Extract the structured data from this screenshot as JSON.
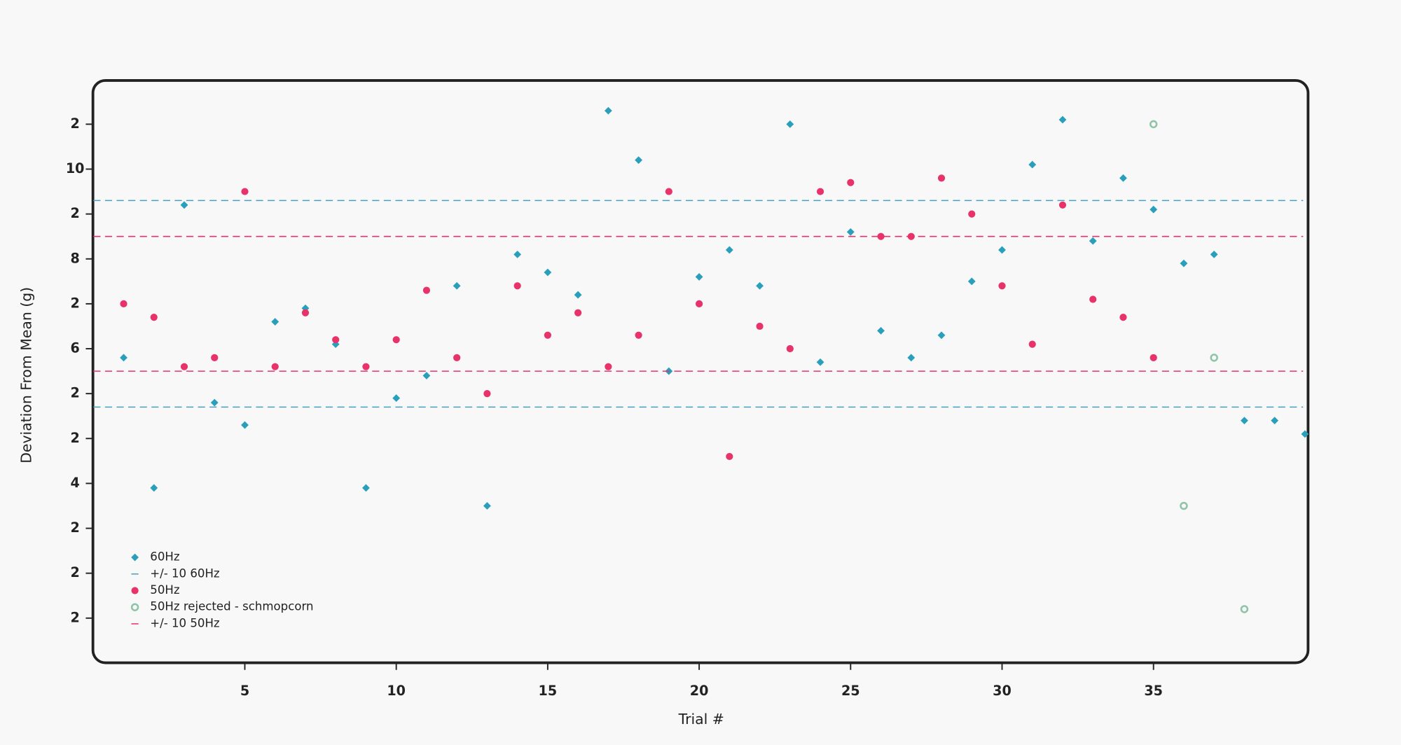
{
  "chart_data": {
    "type": "scatter",
    "xlabel": "Trial #",
    "ylabel": "Deviation From Mean (g)",
    "xlim": [
      0,
      40
    ],
    "ylim": [
      -1,
      12
    ],
    "xticks": [
      5,
      10,
      15,
      20,
      25,
      30,
      35
    ],
    "yticks": [
      {
        "value": 11,
        "label": "2"
      },
      {
        "value": 10,
        "label": "10"
      },
      {
        "value": 9,
        "label": "2"
      },
      {
        "value": 8,
        "label": "8"
      },
      {
        "value": 7,
        "label": "2"
      },
      {
        "value": 6,
        "label": "6"
      },
      {
        "value": 5,
        "label": "2"
      },
      {
        "value": 4,
        "label": "2"
      },
      {
        "value": 3,
        "label": "4"
      },
      {
        "value": 2,
        "label": "2"
      },
      {
        "value": 1,
        "label": "2"
      },
      {
        "value": 0,
        "label": "2"
      }
    ],
    "series": [
      {
        "name": "60Hz",
        "marker": "diamond",
        "color": "#2a9fbc",
        "x": [
          1,
          2,
          3,
          4,
          5,
          6,
          7,
          8,
          9,
          10,
          11,
          12,
          13,
          14,
          15,
          16,
          17,
          18,
          19,
          20,
          21,
          22,
          23,
          24,
          25,
          26,
          27,
          28,
          29,
          30,
          31,
          32,
          33,
          34,
          35,
          36,
          37,
          38,
          39,
          40
        ],
        "values": [
          5.8,
          2.9,
          9.2,
          4.8,
          4.3,
          6.6,
          6.9,
          6.1,
          2.9,
          4.9,
          5.4,
          7.4,
          2.5,
          8.1,
          7.7,
          7.2,
          11.3,
          10.2,
          5.5,
          7.6,
          8.2,
          7.4,
          11.0,
          5.7,
          8.6,
          6.4,
          5.8,
          6.3,
          7.5,
          8.2,
          10.1,
          11.1,
          8.4,
          9.8,
          9.1,
          7.9,
          8.1,
          4.4,
          4.4,
          4.1
        ]
      },
      {
        "name": "+/- 10 60Hz",
        "marker": "dashed-line",
        "color": "#4a9fc0",
        "values": [
          9.3,
          4.7
        ]
      },
      {
        "name": "50Hz",
        "marker": "circle",
        "color": "#e8336a",
        "x": [
          1,
          2,
          3,
          4,
          5,
          6,
          7,
          8,
          9,
          10,
          11,
          12,
          13,
          14,
          15,
          16,
          17,
          18,
          19,
          20,
          21,
          22,
          23,
          24,
          25,
          26,
          27,
          28,
          29,
          30,
          31,
          32,
          33,
          34,
          35
        ],
        "values": [
          7.0,
          6.7,
          5.6,
          5.8,
          9.5,
          5.6,
          6.8,
          6.2,
          5.6,
          6.2,
          7.3,
          5.8,
          5.0,
          7.4,
          6.3,
          6.8,
          5.6,
          6.3,
          9.5,
          7.0,
          3.6,
          6.5,
          6.0,
          9.5,
          9.7,
          8.5,
          8.5,
          9.8,
          9.0,
          7.4,
          6.1,
          9.2,
          7.1,
          6.7,
          5.8
        ]
      },
      {
        "name": "50Hz rejected - schmopcorn",
        "marker": "open-circle",
        "color": "#8fc4a8",
        "x": [
          35,
          36,
          37,
          38
        ],
        "values": [
          11.0,
          2.5,
          5.8,
          0.2
        ]
      },
      {
        "name": "+/- 10 50Hz",
        "marker": "dashed-line",
        "color": "#e8336a",
        "values": [
          8.5,
          5.5
        ]
      }
    ]
  }
}
